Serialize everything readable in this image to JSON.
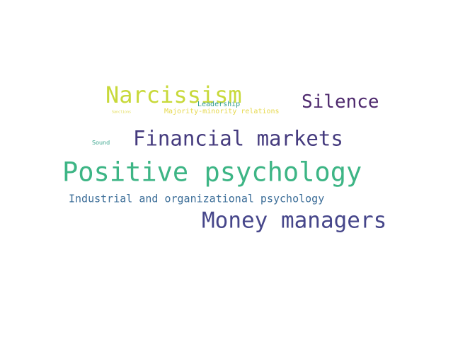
{
  "words": [
    {
      "text": "Narcissism",
      "color": "#c8d93a"
    },
    {
      "text": "Silence",
      "color": "#4f2a6e"
    },
    {
      "text": "Leadership",
      "color": "#2d9a8c"
    },
    {
      "text": "Sanctions",
      "color": "#e0d94a"
    },
    {
      "text": "Majority-minority relations",
      "color": "#e6d84c"
    },
    {
      "text": "Sound",
      "color": "#3aa58e"
    },
    {
      "text": "Financial markets",
      "color": "#453b7e"
    },
    {
      "text": "Positive psychology",
      "color": "#3db585"
    },
    {
      "text": "Industrial and organizational psychology",
      "color": "#3e6f99"
    },
    {
      "text": "Money managers",
      "color": "#46468a"
    }
  ]
}
